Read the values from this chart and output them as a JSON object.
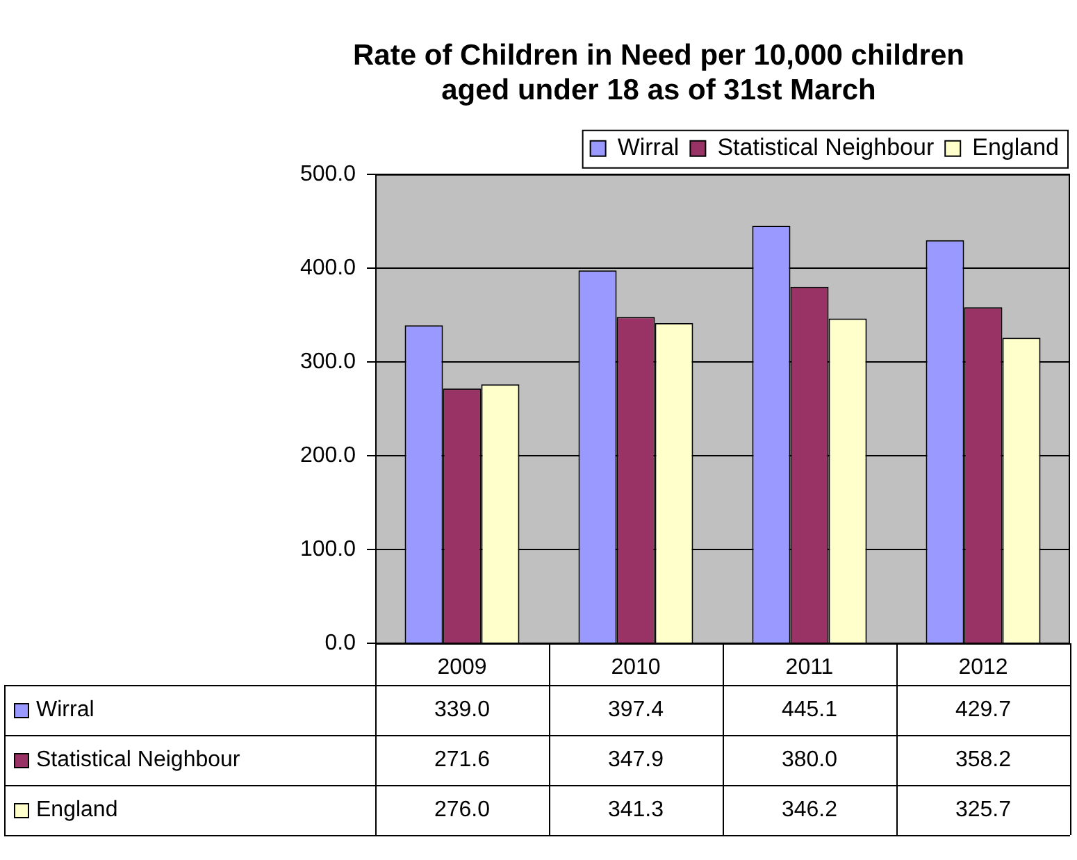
{
  "chart_data": {
    "type": "bar",
    "title": "Rate of Children in Need per 10,000 children\naged under 18 as of 31st March",
    "categories": [
      "2009",
      "2010",
      "2011",
      "2012"
    ],
    "series": [
      {
        "name": "Wirral",
        "color": "#9999ff",
        "values": [
          339.0,
          397.4,
          445.1,
          429.7
        ],
        "value_labels": [
          "339.0",
          "397.4",
          "445.1",
          "429.7"
        ]
      },
      {
        "name": "Statistical Neighbour",
        "color": "#993366",
        "values": [
          271.6,
          347.9,
          380.0,
          358.2
        ],
        "value_labels": [
          "271.6",
          "347.9",
          "380.0",
          "358.2"
        ]
      },
      {
        "name": "England",
        "color": "#ffffcc",
        "values": [
          276.0,
          341.3,
          346.2,
          325.7
        ],
        "value_labels": [
          "276.0",
          "341.3",
          "346.2",
          "325.7"
        ]
      }
    ],
    "ylim": [
      0,
      500
    ],
    "yticks": [
      {
        "value": 0,
        "label": "0.0"
      },
      {
        "value": 100,
        "label": "100.0"
      },
      {
        "value": 200,
        "label": "200.0"
      },
      {
        "value": 300,
        "label": "300.0"
      },
      {
        "value": 400,
        "label": "400.0"
      },
      {
        "value": 500,
        "label": "500.0"
      }
    ],
    "grid": "y",
    "legend": "top right"
  }
}
